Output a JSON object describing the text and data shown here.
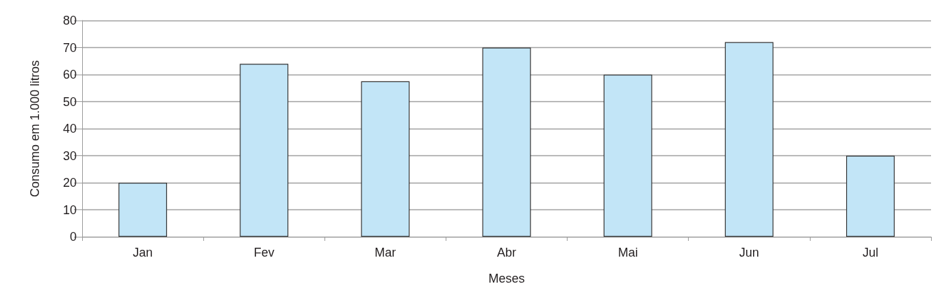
{
  "chart_data": {
    "type": "bar",
    "xlabel": "Meses",
    "ylabel": "Consumo em 1.000 litros",
    "categories": [
      "Jan",
      "Fev",
      "Mar",
      "Abr",
      "Mai",
      "Jun",
      "Jul"
    ],
    "values": [
      20,
      64,
      57.5,
      70,
      60,
      72,
      30
    ],
    "color": "#c2e5f7",
    "ylim": [
      0,
      80
    ],
    "yticks": [
      0,
      10,
      20,
      30,
      40,
      50,
      60,
      70,
      80
    ],
    "grid": "y"
  }
}
